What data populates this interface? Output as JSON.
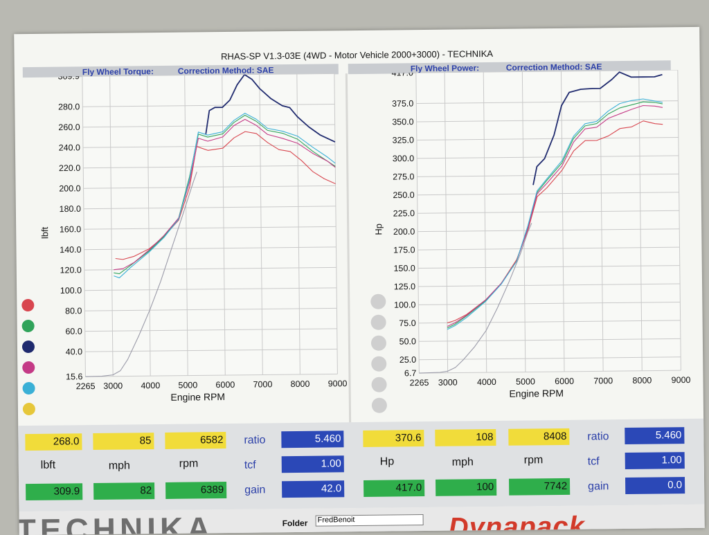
{
  "report": {
    "title": "RHAS-SP V1.3-03E  (4WD - Motor Vehicle 2000+3000) - TECHNIKA",
    "left_header_a": "Fly Wheel Torque:",
    "left_header_b": "Correction Method: SAE",
    "right_header_a": "Fly Wheel Power:",
    "right_header_b": "Correction Method: SAE",
    "folder_label": "Folder",
    "folder_value": "FredBenoit",
    "logo_left": "TECHNIKA",
    "logo_right": "Dynapack"
  },
  "colors": {
    "red": "#d8464f",
    "green": "#30a35a",
    "navy": "#1f2a6e",
    "magenta": "#c43a86",
    "cyan": "#3ab0d6",
    "yellow": "#e6c73a",
    "grey": "#9a9aa8",
    "grid": "#c9c9c9"
  },
  "chart_data": [
    {
      "type": "line",
      "ylabel": "lbft",
      "xlabel": "Engine RPM",
      "xlim": [
        2265,
        9000
      ],
      "xticks": [
        "2265",
        "3000",
        "4000",
        "5000",
        "6000",
        "7000",
        "8000",
        "9000"
      ],
      "ylim": [
        15.6,
        309.9
      ],
      "yticks": [
        "15.6",
        "40.0",
        "60.0",
        "80.0",
        "100.0",
        "120.0",
        "140.0",
        "160.0",
        "180.0",
        "200.0",
        "220.0",
        "240.0",
        "260.0",
        "280.0",
        "309.9"
      ],
      "legend_colors": [
        "red",
        "green",
        "navy",
        "magenta",
        "cyan",
        "yellow"
      ],
      "series": [
        {
          "color": "navy",
          "x": [
            5550,
            5650,
            5800,
            6000,
            6200,
            6400,
            6600,
            6800,
            7000,
            7300,
            7600,
            7800,
            8000,
            8300,
            8600,
            9000
          ],
          "y": [
            252,
            275,
            278,
            278,
            285,
            300,
            309.9,
            305,
            296,
            286,
            279,
            277,
            268,
            258,
            250,
            243
          ]
        },
        {
          "color": "red",
          "x": [
            3100,
            3300,
            3600,
            4000,
            4400,
            4800,
            5100,
            5300,
            5600,
            6000,
            6300,
            6600,
            6900,
            7200,
            7500,
            7800,
            8100,
            8400,
            8700,
            9000
          ],
          "y": [
            131,
            130,
            133,
            140,
            152,
            168,
            200,
            240,
            236,
            238,
            248,
            254,
            252,
            243,
            236,
            234,
            225,
            214,
            207,
            202
          ]
        },
        {
          "color": "green",
          "x": [
            3050,
            3200,
            3500,
            4000,
            4400,
            4800,
            5100,
            5350,
            5600,
            6000,
            6300,
            6600,
            6900,
            7200,
            7600,
            8000,
            8400,
            8800,
            9000
          ],
          "y": [
            117,
            116,
            124,
            138,
            152,
            170,
            210,
            252,
            249,
            252,
            263,
            270,
            264,
            255,
            252,
            246,
            234,
            224,
            219
          ]
        },
        {
          "color": "magenta",
          "x": [
            3050,
            3300,
            3600,
            4000,
            4400,
            4800,
            5100,
            5350,
            5600,
            6000,
            6300,
            6600,
            6900,
            7200,
            7600,
            8000,
            8400,
            8800,
            9000
          ],
          "y": [
            120,
            121,
            127,
            139,
            153,
            170,
            205,
            248,
            245,
            249,
            260,
            266,
            260,
            251,
            247,
            242,
            232,
            224,
            218
          ]
        },
        {
          "color": "cyan",
          "x": [
            3050,
            3200,
            3500,
            4000,
            4400,
            4800,
            5100,
            5350,
            5600,
            6000,
            6300,
            6600,
            6900,
            7200,
            7600,
            8000,
            8400,
            8800,
            9000
          ],
          "y": [
            114,
            112,
            122,
            137,
            151,
            169,
            208,
            254,
            251,
            254,
            265,
            272,
            266,
            257,
            254,
            249,
            238,
            228,
            222
          ]
        },
        {
          "color": "grey",
          "x": [
            2265,
            2700,
            3000,
            3200,
            3400,
            3700,
            4000,
            4300,
            4600,
            4900,
            5200,
            5300
          ],
          "y": [
            15.6,
            15.8,
            17,
            21,
            32,
            55,
            80,
            108,
            140,
            172,
            205,
            215
          ]
        }
      ]
    },
    {
      "type": "line",
      "ylabel": "Hp",
      "xlabel": "Engine RPM",
      "xlim": [
        2265,
        9000
      ],
      "xticks": [
        "2265",
        "3000",
        "4000",
        "5000",
        "6000",
        "7000",
        "8000",
        "9000"
      ],
      "ylim": [
        6.7,
        417.0
      ],
      "yticks": [
        "6.7",
        "25.0",
        "50.0",
        "75.0",
        "100.0",
        "125.0",
        "150.0",
        "175.0",
        "200.0",
        "225.0",
        "250.0",
        "275.0",
        "300.0",
        "325.0",
        "350.0",
        "375.0",
        "417.0"
      ],
      "series": [
        {
          "color": "navy",
          "x": [
            5250,
            5350,
            5550,
            5800,
            6000,
            6200,
            6500,
            6800,
            7000,
            7300,
            7500,
            7800,
            8100,
            8400,
            8600
          ],
          "y": [
            262,
            287,
            298,
            330,
            370,
            388,
            392,
            393,
            393,
            405,
            415,
            408,
            408,
            408,
            411
          ]
        },
        {
          "color": "red",
          "x": [
            3000,
            3200,
            3500,
            4000,
            4400,
            4800,
            5100,
            5350,
            5600,
            6000,
            6300,
            6600,
            6900,
            7200,
            7500,
            7800,
            8100,
            8400,
            8600
          ],
          "y": [
            75,
            78,
            86,
            106,
            128,
            160,
            200,
            246,
            258,
            282,
            308,
            322,
            322,
            328,
            338,
            340,
            348,
            344,
            343
          ]
        },
        {
          "color": "green",
          "x": [
            3000,
            3200,
            3500,
            4000,
            4400,
            4800,
            5100,
            5350,
            5600,
            6000,
            6300,
            6600,
            6900,
            7200,
            7500,
            7800,
            8100,
            8400,
            8600
          ],
          "y": [
            68,
            73,
            84,
            105,
            128,
            158,
            205,
            252,
            268,
            292,
            325,
            342,
            345,
            358,
            366,
            370,
            374,
            373,
            371
          ]
        },
        {
          "color": "magenta",
          "x": [
            3000,
            3200,
            3500,
            4000,
            4400,
            4800,
            5100,
            5350,
            5600,
            6000,
            6300,
            6600,
            6900,
            7200,
            7500,
            7800,
            8100,
            8400,
            8600
          ],
          "y": [
            70,
            75,
            85,
            106,
            128,
            158,
            202,
            250,
            264,
            288,
            320,
            338,
            340,
            352,
            358,
            364,
            369,
            368,
            366
          ]
        },
        {
          "color": "cyan",
          "x": [
            3000,
            3200,
            3500,
            4000,
            4400,
            4800,
            5100,
            5350,
            5600,
            6000,
            6300,
            6600,
            6900,
            7200,
            7500,
            7800,
            8100,
            8400,
            8600
          ],
          "y": [
            66,
            71,
            82,
            104,
            127,
            158,
            206,
            254,
            270,
            295,
            328,
            345,
            348,
            362,
            372,
            376,
            378,
            375,
            373
          ]
        },
        {
          "color": "grey",
          "x": [
            2265,
            2800,
            3000,
            3200,
            3400,
            3700,
            4000,
            4300,
            4600,
            4900,
            5100,
            5200
          ],
          "y": [
            6.7,
            7.5,
            9,
            14,
            24,
            42,
            64,
            95,
            130,
            168,
            198,
            210
          ]
        }
      ]
    }
  ],
  "readouts": {
    "left": {
      "row1": [
        "268.0",
        "85",
        "6582"
      ],
      "units": [
        "lbft",
        "mph",
        "rpm"
      ],
      "row2": [
        "309.9",
        "82",
        "6389"
      ],
      "params": [
        {
          "label": "ratio",
          "value": "5.460"
        },
        {
          "label": "tcf",
          "value": "1.00"
        },
        {
          "label": "gain",
          "value": "42.0"
        }
      ]
    },
    "right": {
      "row1": [
        "370.6",
        "108",
        "8408"
      ],
      "units": [
        "Hp",
        "mph",
        "rpm"
      ],
      "row2": [
        "417.0",
        "100",
        "7742"
      ],
      "params": [
        {
          "label": "ratio",
          "value": "5.460"
        },
        {
          "label": "tcf",
          "value": "1.00"
        },
        {
          "label": "gain",
          "value": "0.0"
        }
      ]
    }
  }
}
